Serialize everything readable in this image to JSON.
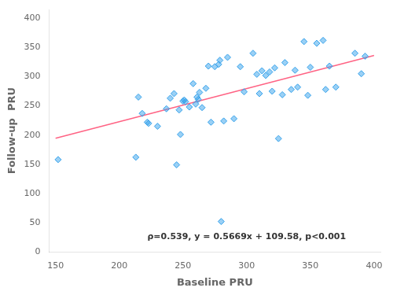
{
  "chart_data": {
    "type": "scatter",
    "xlabel": "Baseline PRU",
    "ylabel": "Follow-up  PRU",
    "series": [
      {
        "type": "scatter",
        "marker": "diamond",
        "x": [
          152,
          213,
          215,
          218,
          222,
          223,
          230,
          237,
          240,
          243,
          245,
          247,
          248,
          250,
          251,
          252,
          255,
          258,
          260,
          261,
          262,
          263,
          265,
          268,
          270,
          272,
          275,
          278,
          279,
          280,
          282,
          285,
          290,
          295,
          298,
          305,
          308,
          310,
          312,
          315,
          318,
          320,
          322,
          325,
          328,
          330,
          335,
          338,
          340,
          345,
          348,
          350,
          355,
          360,
          362,
          365,
          370,
          385,
          390,
          393
        ],
        "values": [
          158,
          162,
          265,
          237,
          222,
          220,
          215,
          245,
          263,
          271,
          149,
          243,
          201,
          258,
          260,
          257,
          248,
          288,
          253,
          265,
          261,
          273,
          247,
          280,
          318,
          222,
          317,
          321,
          328,
          52,
          224,
          333,
          228,
          317,
          274,
          340,
          304,
          271,
          310,
          302,
          308,
          275,
          315,
          194,
          269,
          324,
          278,
          311,
          282,
          360,
          268,
          316,
          357,
          362,
          278,
          318,
          282,
          340,
          305,
          335
        ]
      },
      {
        "type": "line",
        "line_style": "solid",
        "x": [
          150,
          400
        ],
        "values": [
          194.575,
          336.335
        ]
      }
    ],
    "annotations": [
      {
        "text": "ρ=0.539, y = 0.5669x + 109.58, p<0.001",
        "x": 300,
        "y": 18
      }
    ],
    "xlim": [
      145,
      405
    ],
    "ylim": [
      0,
      415
    ],
    "xticks": [
      150,
      200,
      250,
      300,
      350,
      400
    ],
    "yticks": [
      0,
      50,
      100,
      150,
      200,
      250,
      300,
      350,
      400
    ],
    "grid": false
  }
}
